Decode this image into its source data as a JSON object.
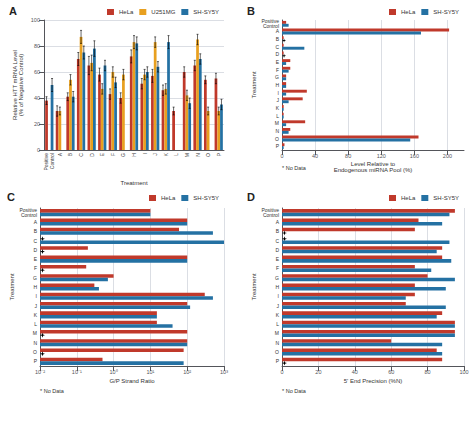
{
  "chart_data": [
    {
      "type": "bar",
      "title": "A",
      "categories": [
        "Positive\nControl",
        "A",
        "B",
        "C",
        "D",
        "E",
        "F",
        "G",
        "H",
        "I",
        "J",
        "K",
        "L",
        "M",
        "N",
        "O",
        "P"
      ],
      "series": [
        {
          "name": "HeLa",
          "color": "#C0392B",
          "values": [
            38,
            30,
            41,
            70,
            65,
            58,
            43,
            40,
            72,
            51,
            57,
            46,
            30,
            60,
            65,
            54,
            55
          ],
          "errors": [
            3,
            4,
            3,
            5,
            7,
            5,
            4,
            4,
            5,
            4,
            5,
            4,
            3,
            4,
            4,
            3,
            4
          ]
        },
        {
          "name": "U251MG",
          "color": "#E8A020",
          "values": [
            null,
            30,
            54,
            87,
            67,
            47,
            60,
            58,
            83,
            58,
            83,
            47,
            null,
            42,
            85,
            30,
            30
          ],
          "errors": [
            null,
            3,
            4,
            5,
            6,
            4,
            4,
            4,
            5,
            4,
            4,
            4,
            null,
            4,
            4,
            3,
            3
          ]
        },
        {
          "name": "SH-SY5Y",
          "color": "#2471A3",
          "values": [
            50,
            null,
            41,
            75,
            78,
            65,
            52,
            null,
            82,
            60,
            64,
            83,
            null,
            36,
            70,
            null,
            35
          ],
          "errors": [
            5,
            null,
            4,
            5,
            6,
            4,
            4,
            null,
            5,
            4,
            4,
            5,
            null,
            4,
            4,
            null,
            4
          ]
        }
      ],
      "xlabel": "Treatment",
      "ylabel": "Relative HTT mRNA Level\n(% of Negative Control)",
      "ylim": [
        0,
        100
      ],
      "yticks": [
        0,
        20,
        40,
        60,
        80,
        100
      ],
      "grid": true,
      "legend": "upper right"
    },
    {
      "type": "bar",
      "orientation": "horizontal",
      "title": "B",
      "categories": [
        "Positive\nControl",
        "A",
        "B",
        "C",
        "D",
        "E",
        "F",
        "G",
        "H",
        "I",
        "J",
        "K",
        "L",
        "M",
        "N",
        "O",
        "P"
      ],
      "series": [
        {
          "name": "HeLa",
          "color": "#C0392B",
          "values": [
            5,
            202,
            2,
            2,
            2,
            10,
            10,
            5,
            5,
            30,
            25,
            2,
            2,
            28,
            10,
            165,
            3
          ]
        },
        {
          "name": "SH-SY5Y",
          "color": "#2471A3",
          "values": [
            8,
            168,
            null,
            27,
            null,
            5,
            8,
            5,
            5,
            5,
            8,
            2,
            2,
            5,
            8,
            155,
            2
          ]
        }
      ],
      "xlabel": "Level Relative to\nEndogenous miRNA Pool (%)",
      "ylabel": "Treatment",
      "xlim": [
        0,
        220
      ],
      "xticks": [
        0,
        40,
        80,
        120,
        160,
        200
      ],
      "grid": true,
      "legend": "upper right",
      "annotation": "* No Data"
    },
    {
      "type": "bar",
      "orientation": "horizontal",
      "title": "C",
      "log": "x",
      "categories": [
        "Positive\nControl",
        "A",
        "B",
        "C",
        "D",
        "E",
        "F",
        "G",
        "H",
        "I",
        "J",
        "K",
        "L",
        "M",
        "N",
        "O",
        "P"
      ],
      "series": [
        {
          "name": "HeLa",
          "color": "#C0392B",
          "values": [
            10,
            100,
            60,
            null,
            0.2,
            100,
            0.18,
            1.0,
            0.3,
            300,
            100,
            15,
            15,
            100,
            100,
            80,
            0.5
          ]
        },
        {
          "name": "SH-SY5Y",
          "color": "#2471A3",
          "values": [
            10,
            100,
            500,
            1000,
            null,
            100,
            null,
            0.7,
            0.4,
            500,
            120,
            15,
            40,
            null,
            100,
            null,
            80
          ]
        }
      ],
      "xlabel": "G/P Strand Ratio",
      "ylabel": "Treatment",
      "xlim": [
        0.01,
        1000
      ],
      "xticks": [
        {
          "value": 0.01,
          "label": "10⁻²"
        },
        {
          "value": 0.1,
          "label": "10⁻¹"
        },
        {
          "value": 1,
          "label": "10⁰"
        },
        {
          "value": 10,
          "label": "10¹"
        },
        {
          "value": 100,
          "label": "10²"
        },
        {
          "value": 1000,
          "label": "10³"
        }
      ],
      "grid": true,
      "legend": "upper right",
      "annotation": "* No Data"
    },
    {
      "type": "bar",
      "orientation": "horizontal",
      "title": "D",
      "categories": [
        "Positive\nControl",
        "A",
        "B",
        "C",
        "D",
        "E",
        "F",
        "G",
        "H",
        "I",
        "J",
        "K",
        "L",
        "M",
        "N",
        "O",
        "P"
      ],
      "series": [
        {
          "name": "HeLa",
          "color": "#C0392B",
          "values": [
            95,
            75,
            73,
            null,
            88,
            88,
            73,
            80,
            73,
            73,
            68,
            88,
            95,
            95,
            60,
            85,
            88
          ]
        },
        {
          "name": "SH-SY5Y",
          "color": "#2471A3",
          "values": [
            92,
            88,
            null,
            92,
            85,
            93,
            82,
            95,
            90,
            68,
            90,
            85,
            95,
            95,
            88,
            88,
            null
          ]
        }
      ],
      "xlabel": "5' End Precision (%N)",
      "ylabel": "Treatment",
      "xlim": [
        0,
        100
      ],
      "xticks": [
        0,
        20,
        40,
        60,
        80,
        100
      ],
      "grid": true,
      "legend": "upper right",
      "annotation": "* No Data"
    }
  ]
}
